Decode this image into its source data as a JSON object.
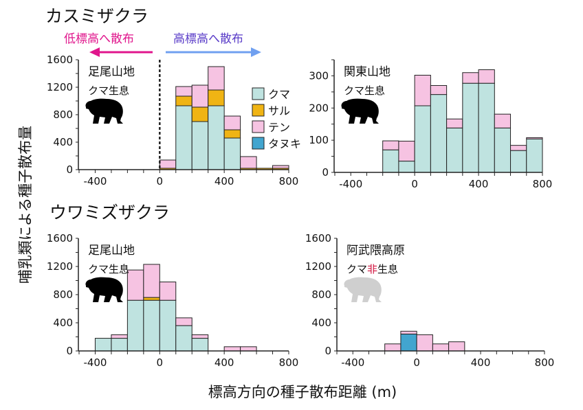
{
  "colors": {
    "kuma": "#bfe3e0",
    "saru": "#f0b414",
    "ten": "#f6c3e2",
    "tanuki": "#42a5cf",
    "low_arrow": "#e0168c",
    "high_arrow": "#70a0f0",
    "high_text": "#5a3cc8",
    "non": "#d0103c"
  },
  "y_label": "哺乳類による種子散布量",
  "x_label": "標高方向の種子散布距離 (m)",
  "sections": [
    {
      "title": "カスミザクラ"
    },
    {
      "title": "ウワミズザクラ"
    }
  ],
  "direction": {
    "low": "低標高へ散布",
    "high": "高標高へ散布"
  },
  "legend": [
    {
      "key": "kuma",
      "label": "クマ"
    },
    {
      "key": "saru",
      "label": "サル"
    },
    {
      "key": "ten",
      "label": "テン"
    },
    {
      "key": "tanuki",
      "label": "タヌキ"
    }
  ],
  "chart_data": [
    {
      "type": "bar",
      "stacked": true,
      "site": "足尾山地",
      "status_prefix": "クマ",
      "status_non": "",
      "status_suffix": "生息",
      "bear_present": true,
      "xlim": [
        -500,
        800
      ],
      "xticks": [
        "-400",
        "0",
        "400",
        "800"
      ],
      "ylim": [
        0,
        1600
      ],
      "yticks": [
        "0",
        "400",
        "800",
        "1200",
        "1600"
      ],
      "zero_line": true,
      "bins": [
        [
          0,
          100
        ],
        [
          100,
          200
        ],
        [
          200,
          300
        ],
        [
          300,
          400
        ],
        [
          400,
          500
        ],
        [
          500,
          600
        ],
        [
          600,
          700
        ],
        [
          700,
          800
        ]
      ],
      "series": [
        {
          "name": "クマ",
          "key": "kuma",
          "values": [
            0,
            930,
            700,
            930,
            460,
            0,
            0,
            0
          ]
        },
        {
          "name": "サル",
          "key": "saru",
          "values": [
            20,
            140,
            210,
            230,
            120,
            20,
            20,
            20
          ]
        },
        {
          "name": "テン",
          "key": "ten",
          "values": [
            120,
            140,
            320,
            340,
            200,
            170,
            0,
            40
          ]
        },
        {
          "name": "タヌキ",
          "key": "tanuki",
          "values": [
            0,
            0,
            0,
            0,
            0,
            0,
            0,
            0
          ]
        }
      ]
    },
    {
      "type": "bar",
      "stacked": true,
      "site": "関東山地",
      "status_prefix": "クマ",
      "status_non": "",
      "status_suffix": "生息",
      "bear_present": true,
      "xlim": [
        -500,
        800
      ],
      "xticks": [
        "-400",
        "0",
        "400",
        "800"
      ],
      "ylim": [
        0,
        350
      ],
      "yticks": [
        "0",
        "100",
        "200",
        "300"
      ],
      "bins": [
        [
          -200,
          -100
        ],
        [
          -100,
          0
        ],
        [
          0,
          100
        ],
        [
          100,
          200
        ],
        [
          200,
          300
        ],
        [
          300,
          400
        ],
        [
          400,
          500
        ],
        [
          500,
          600
        ],
        [
          600,
          700
        ],
        [
          700,
          800
        ]
      ],
      "series": [
        {
          "name": "クマ",
          "key": "kuma",
          "values": [
            70,
            35,
            207,
            242,
            138,
            277,
            277,
            138,
            68,
            104
          ]
        },
        {
          "name": "サル",
          "key": "saru",
          "values": [
            0,
            0,
            0,
            0,
            0,
            0,
            0,
            0,
            0,
            0
          ]
        },
        {
          "name": "テン",
          "key": "ten",
          "values": [
            28,
            62,
            95,
            28,
            28,
            33,
            42,
            43,
            16,
            4
          ]
        },
        {
          "name": "タヌキ",
          "key": "tanuki",
          "values": [
            0,
            0,
            0,
            0,
            0,
            0,
            0,
            0,
            0,
            0
          ]
        }
      ]
    },
    {
      "type": "bar",
      "stacked": true,
      "site": "足尾山地",
      "status_prefix": "クマ",
      "status_non": "",
      "status_suffix": "生息",
      "bear_present": true,
      "xlim": [
        -500,
        800
      ],
      "xticks": [
        "-400",
        "0",
        "400",
        "800"
      ],
      "ylim": [
        0,
        1600
      ],
      "yticks": [
        "0",
        "400",
        "800",
        "1200",
        "1600"
      ],
      "bins": [
        [
          -400,
          -300
        ],
        [
          -300,
          -200
        ],
        [
          -200,
          -100
        ],
        [
          -100,
          0
        ],
        [
          0,
          100
        ],
        [
          100,
          200
        ],
        [
          200,
          300
        ],
        [
          400,
          500
        ],
        [
          500,
          600
        ]
      ],
      "series": [
        {
          "name": "クマ",
          "key": "kuma",
          "values": [
            180,
            180,
            720,
            720,
            720,
            360,
            180,
            0,
            0
          ]
        },
        {
          "name": "サル",
          "key": "saru",
          "values": [
            0,
            0,
            0,
            40,
            0,
            0,
            0,
            0,
            0
          ]
        },
        {
          "name": "テン",
          "key": "ten",
          "values": [
            0,
            50,
            430,
            470,
            260,
            110,
            50,
            60,
            60
          ]
        },
        {
          "name": "タヌキ",
          "key": "tanuki",
          "values": [
            0,
            0,
            0,
            0,
            0,
            0,
            0,
            0,
            0
          ]
        }
      ]
    },
    {
      "type": "bar",
      "stacked": true,
      "site": "阿武隈高原",
      "status_prefix": "クマ",
      "status_non": "非",
      "status_suffix": "生息",
      "bear_present": false,
      "xlim": [
        -500,
        800
      ],
      "xticks": [
        "-400",
        "0",
        "400",
        "800"
      ],
      "ylim": [
        0,
        1600
      ],
      "yticks": [
        "0",
        "400",
        "800",
        "1200",
        "1600"
      ],
      "bins": [
        [
          -200,
          -100
        ],
        [
          -100,
          0
        ],
        [
          0,
          100
        ],
        [
          100,
          200
        ],
        [
          200,
          300
        ]
      ],
      "series": [
        {
          "name": "クマ",
          "key": "kuma",
          "values": [
            0,
            0,
            0,
            0,
            0
          ]
        },
        {
          "name": "サル",
          "key": "saru",
          "values": [
            0,
            0,
            0,
            0,
            0
          ]
        },
        {
          "name": "タヌキ",
          "key": "tanuki",
          "values": [
            0,
            240,
            0,
            0,
            0
          ]
        },
        {
          "name": "テン",
          "key": "ten",
          "values": [
            100,
            40,
            230,
            100,
            130
          ]
        }
      ]
    }
  ]
}
